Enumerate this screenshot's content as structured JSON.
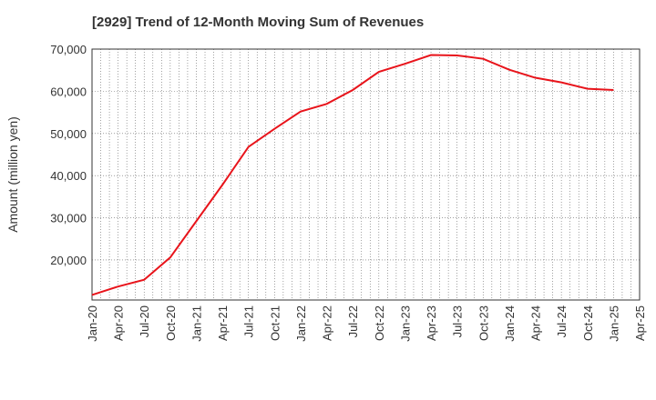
{
  "chart_data": {
    "type": "line",
    "title": "[2929]  Trend of 12-Month Moving Sum of Revenues",
    "xlabel": "",
    "ylabel": "Amount (million yen)",
    "ylim": [
      10500,
      70000
    ],
    "yticks": [
      20000,
      30000,
      40000,
      50000,
      60000,
      70000
    ],
    "ytick_labels": [
      "20,000",
      "30,000",
      "40,000",
      "50,000",
      "60,000",
      "70,000"
    ],
    "xtick_labels": [
      "Jan-20",
      "Apr-20",
      "Jul-20",
      "Oct-20",
      "Jan-21",
      "Apr-21",
      "Jul-21",
      "Oct-21",
      "Jan-22",
      "Apr-22",
      "Jul-22",
      "Oct-22",
      "Jan-23",
      "Apr-23",
      "Jul-23",
      "Oct-23",
      "Jan-24",
      "Apr-24",
      "Jul-24",
      "Oct-24",
      "Jan-25",
      "Apr-25"
    ],
    "grid": true,
    "line_color": "#e8141b",
    "series": [
      {
        "x": [
          "Jan-20",
          "Apr-20",
          "Jul-20",
          "Oct-20",
          "Jan-21",
          "Apr-21",
          "Jul-21",
          "Oct-21",
          "Jan-22",
          "Apr-22",
          "Jul-22",
          "Oct-22",
          "Jan-23",
          "Apr-23",
          "Jul-23",
          "Oct-23",
          "Jan-24",
          "Apr-24",
          "Jul-24",
          "Oct-24",
          "Jan-25"
        ],
        "values": [
          11700,
          13700,
          15300,
          20600,
          29200,
          37800,
          46800,
          51100,
          55200,
          57000,
          60300,
          64600,
          66500,
          68600,
          68500,
          67700,
          65100,
          63200,
          62100,
          60600,
          60300
        ]
      }
    ]
  }
}
